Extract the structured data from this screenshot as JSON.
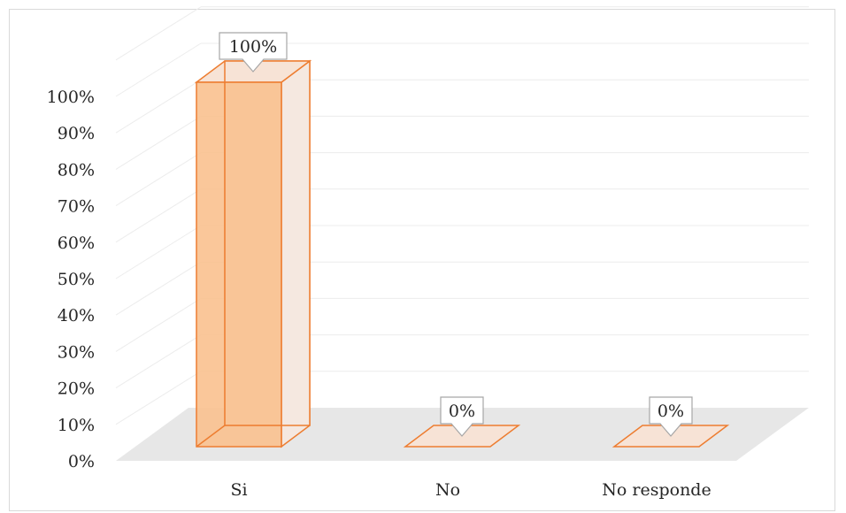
{
  "chart_data": {
    "type": "bar",
    "categories": [
      "Si",
      "No",
      "No responde"
    ],
    "values": [
      100,
      0,
      0
    ],
    "data_labels": [
      "100%",
      "0%",
      "0%"
    ],
    "y_ticks": [
      "0%",
      "10%",
      "20%",
      "30%",
      "40%",
      "50%",
      "60%",
      "70%",
      "80%",
      "90%",
      "100%"
    ],
    "ylim": [
      0,
      100
    ],
    "grid": true,
    "three_d": true,
    "legend": "none",
    "title": "",
    "xlabel": "",
    "ylabel": "",
    "colors": {
      "bar_front": "#f9c18f",
      "bar_side": "#f5e8e0",
      "bar_edge": "#ed7d31",
      "floor": "#e7e7e7",
      "grid": "#ececec"
    }
  }
}
